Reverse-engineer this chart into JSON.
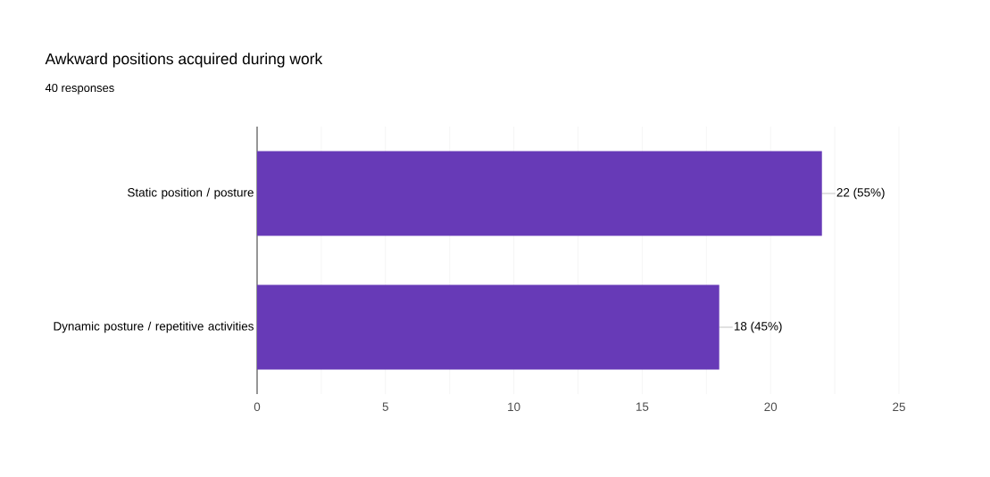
{
  "chart_data": {
    "type": "bar",
    "orientation": "horizontal",
    "title": "Awkward positions acquired during work",
    "subtitle": "40 responses",
    "categories": [
      "Static position / posture",
      "Dynamic posture / repetitive activities"
    ],
    "values": [
      22,
      18
    ],
    "color": "#673ab7",
    "value_labels": [
      "22 (55%)",
      "18 (45%)"
    ],
    "xlim": [
      0,
      25
    ],
    "xticks": [
      0,
      {
        "value": 2.5,
        "label": null
      },
      5,
      {
        "value": 7.5,
        "label": null
      },
      10,
      {
        "value": 12.5,
        "label": null
      },
      15,
      {
        "value": 17.5,
        "label": null
      },
      20,
      {
        "value": 22.5,
        "label": null
      },
      25
    ],
    "grid": "x"
  }
}
